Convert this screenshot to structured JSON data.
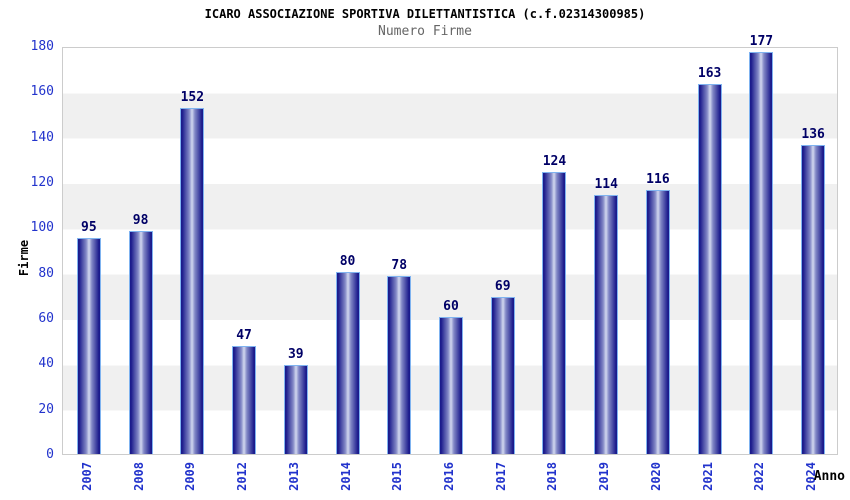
{
  "chart_data": {
    "type": "bar",
    "title": "ICARO ASSOCIAZIONE SPORTIVA DILETTANTISTICA (c.f.02314300985)",
    "subtitle": "Numero Firme",
    "xlabel": "Anno",
    "ylabel": "Firme",
    "categories": [
      "2007",
      "2008",
      "2009",
      "2012",
      "2013",
      "2014",
      "2015",
      "2016",
      "2017",
      "2018",
      "2019",
      "2020",
      "2021",
      "2022",
      "2024"
    ],
    "values": [
      95,
      98,
      152,
      47,
      39,
      80,
      78,
      60,
      69,
      124,
      114,
      116,
      163,
      177,
      136
    ],
    "ylim": [
      0,
      180
    ],
    "ytick_step": 20,
    "yticks": [
      0,
      20,
      40,
      60,
      80,
      100,
      120,
      140,
      160,
      180
    ],
    "grid": "alternating horizontal bands",
    "legend": "none",
    "colors": {
      "bar_dark": "#1b1b8c",
      "bar_mid": "#8288c6",
      "bar_light": "#d2d8ef",
      "bar_border": "#7fb3f0",
      "tick_label": "#2233cc",
      "value_label": "#000066",
      "title": "#000000",
      "subtitle": "#666666",
      "band_gray": "#f0f0f0",
      "band_white": "#ffffff",
      "plot_border": "#cccccc"
    }
  }
}
